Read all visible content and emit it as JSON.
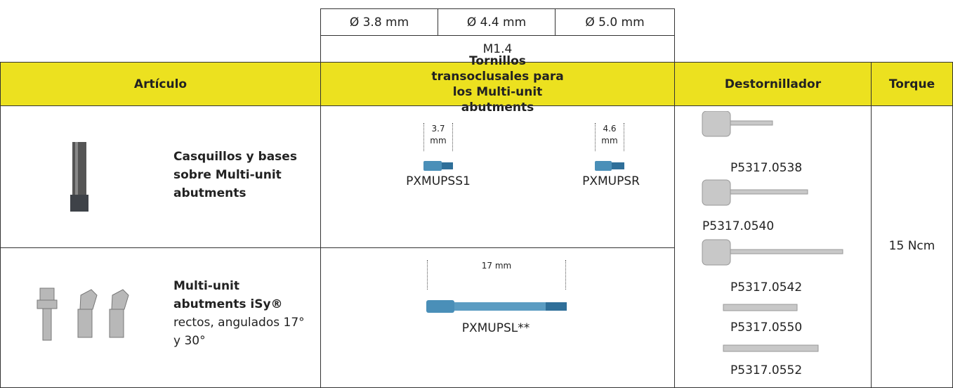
{
  "top_header": {
    "diameters": [
      "Ø 3.8 mm",
      "Ø 4.4 mm",
      "Ø 5.0 mm"
    ],
    "thread": "M1.4"
  },
  "table": {
    "columns": [
      "Artículo",
      "Tornillos transoclusales para los Multi-unit abutments",
      "Destornillador",
      "Torque"
    ],
    "rows": [
      {
        "article_name": "Casquillos y bases sobre Multi-unit abutments"
      },
      {
        "article_name": "Multi-unit abutments iSy®",
        "article_detail": "rectos, angulados 17° y 30°"
      }
    ],
    "screws": [
      {
        "dimension": "3.7 mm",
        "code": "PXMUPSS1"
      },
      {
        "dimension": "4.6 mm",
        "code": "PXMUPSR"
      },
      {
        "dimension": "17 mm",
        "code": "PXMUPSL**"
      }
    ],
    "drivers": [
      "P5317.0538",
      "P5317.0540",
      "P5317.0542",
      "P5317.0550",
      "P5317.0552"
    ],
    "torque": "15 Ncm"
  }
}
